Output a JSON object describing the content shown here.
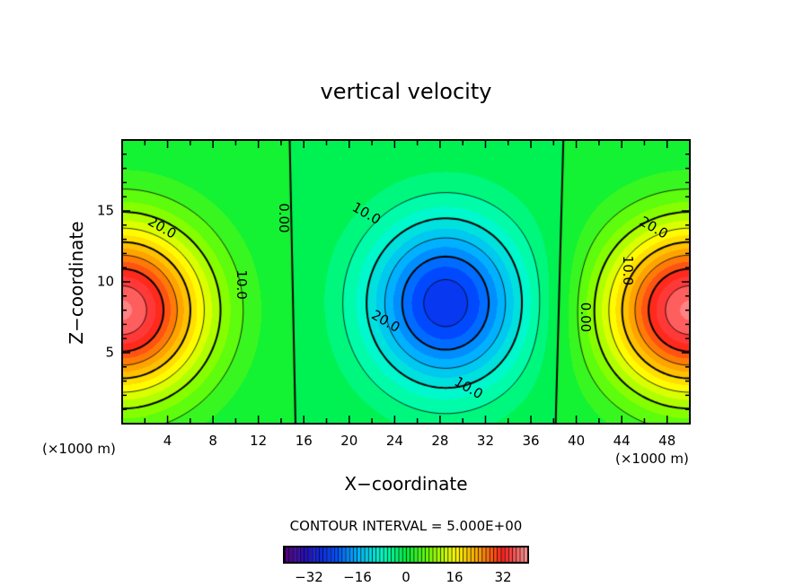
{
  "chart_data": {
    "type": "heatmap",
    "title": "vertical velocity",
    "xlabel": "X−coordinate",
    "ylabel": "Z−coordinate",
    "x_unit": "(×1000 m)",
    "y_unit": "(×1000 m)",
    "xlim": [
      0,
      50
    ],
    "ylim": [
      0,
      20
    ],
    "x_ticks": [
      4,
      8,
      12,
      16,
      20,
      24,
      28,
      32,
      36,
      40,
      44,
      48
    ],
    "y_ticks": [
      5,
      10,
      15
    ],
    "contour_interval_label": "CONTOUR INTERVAL = 5.000E+00",
    "contour_interval": 5,
    "color_range": [
      -40,
      40
    ],
    "colorbar_ticks": [
      "−32",
      "−16",
      "0",
      "16",
      "32"
    ],
    "colorbar_tick_values": [
      -32,
      -16,
      0,
      16,
      32
    ],
    "field_features": [
      {
        "type": "updraft",
        "x": 0,
        "z": 8,
        "peak": 38,
        "sx": 7.5,
        "sz": 6
      },
      {
        "type": "updraft",
        "x": 50,
        "z": 8,
        "peak": 38,
        "sx": 7.5,
        "sz": 6
      },
      {
        "type": "downdraft",
        "x": 28.5,
        "z": 8.5,
        "peak": -27,
        "sx": 7,
        "sz": 6
      }
    ],
    "contour_labels": [
      {
        "text": "20.0",
        "x": 3.5,
        "z": 13.8
      },
      {
        "text": "10.0",
        "x": 10.5,
        "z": 9.8
      },
      {
        "text": "0.00",
        "x": 14.2,
        "z": 14.5
      },
      {
        "text": "10.0",
        "x": 21.5,
        "z": 14.8
      },
      {
        "text": "20.0",
        "x": 23.2,
        "z": 7.2
      },
      {
        "text": "10.0",
        "x": 30.5,
        "z": 2.5
      },
      {
        "text": "0.00",
        "x": 40.8,
        "z": 7.5
      },
      {
        "text": "10.0",
        "x": 44.5,
        "z": 10.8
      },
      {
        "text": "20.0",
        "x": 46.8,
        "z": 13.8
      }
    ]
  }
}
